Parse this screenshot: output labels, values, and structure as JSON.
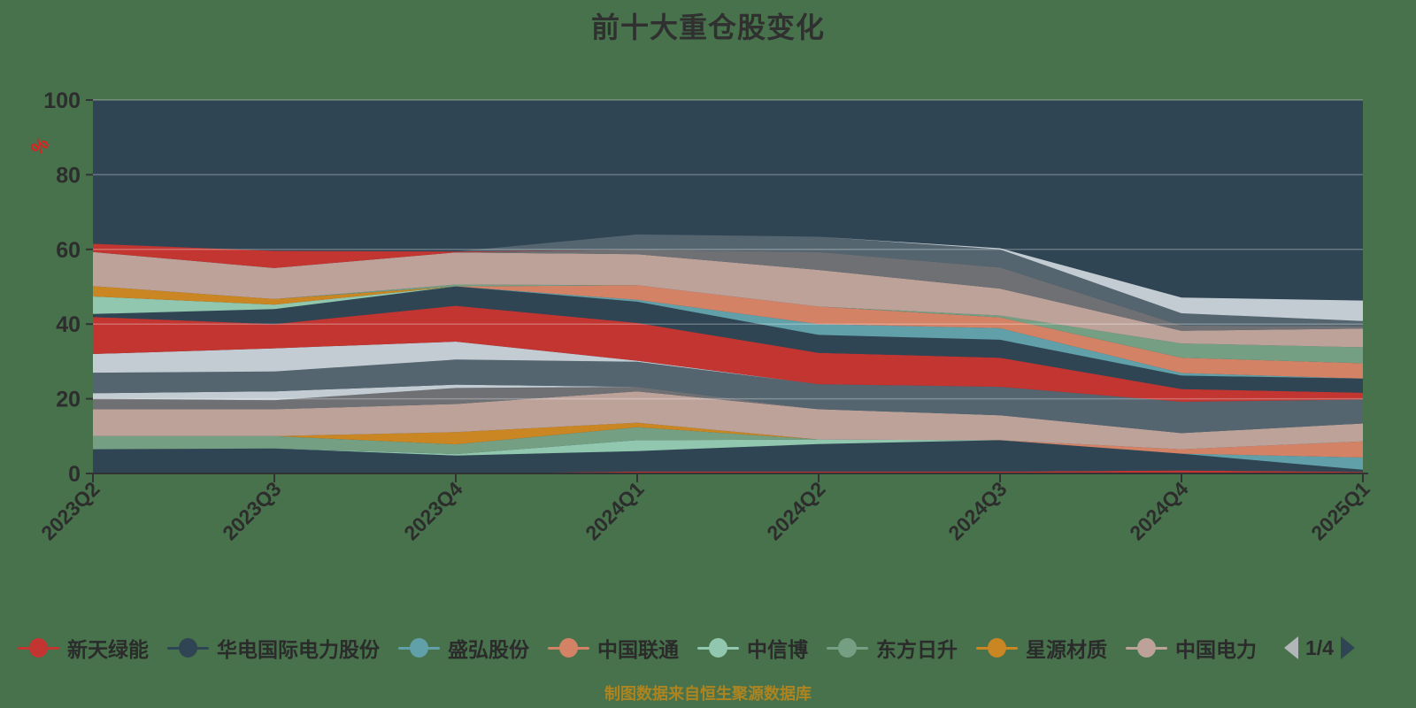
{
  "title": {
    "text": "前十大重仓股变化"
  },
  "caption": {
    "text": "制图数据来自恒生聚源数据库"
  },
  "colors": {
    "page_bg": "#47724c",
    "plot_bg": "#2f4554",
    "title": "#303030",
    "axis_label": "#2d2d2d",
    "axis_line": "#333333",
    "grid_line": "rgba(255,255,255,0.28)",
    "caption": "#ad841f",
    "y_axis_name": "#e02020",
    "legend_text": "#2b2b2b",
    "pager_prev": "#b2b6b8",
    "pager_next": "#2f4554",
    "pager_text": "#2b2b2b"
  },
  "legend": {
    "page": "1/4",
    "items": [
      {
        "label": "新天绿能",
        "color": "#c23531"
      },
      {
        "label": "华电国际电力股份",
        "color": "#2f4554"
      },
      {
        "label": "盛弘股份",
        "color": "#61a0a8"
      },
      {
        "label": "中国联通",
        "color": "#d48265"
      },
      {
        "label": "中信博",
        "color": "#91c7ae"
      },
      {
        "label": "东方日升",
        "color": "#749f83"
      },
      {
        "label": "星源材质",
        "color": "#ca8622"
      },
      {
        "label": "中国电力",
        "color": "#bda29a"
      }
    ]
  },
  "chart_data": {
    "type": "area",
    "stacked": true,
    "unit": "%",
    "title": "前十大重仓股变化",
    "categories": [
      "2023Q2",
      "2023Q3",
      "2023Q4",
      "2024Q1",
      "2024Q2",
      "2024Q3",
      "2024Q4",
      "2025Q1"
    ],
    "y_axis_name": "%",
    "y_ticks": [
      0,
      20,
      40,
      60,
      80,
      100
    ],
    "y_max": 100,
    "grid": true,
    "legend_position": "bottom",
    "series": [
      {
        "name": "red-band-1",
        "color": "#c23531",
        "values": [
          0,
          0,
          0,
          0.5,
          0.5,
          0.5,
          0.8,
          0.4
        ]
      },
      {
        "name": "navy-band-1",
        "color": "#2f4554",
        "values": [
          6.5,
          6.7,
          4.8,
          5.5,
          7.4,
          8.4,
          4.5,
          0.6
        ]
      },
      {
        "name": "teal-band-1",
        "color": "#61a0a8",
        "values": [
          0,
          0,
          0,
          0,
          0,
          0,
          0,
          3.3
        ]
      },
      {
        "name": "mint-band-1",
        "color": "#91c7ae",
        "values": [
          0,
          0,
          0.4,
          2.9,
          1.2,
          0,
          0,
          0
        ]
      },
      {
        "name": "green-band-1",
        "color": "#749f83",
        "values": [
          3.5,
          3.3,
          2.6,
          3.5,
          0,
          0,
          0,
          0
        ]
      },
      {
        "name": "gold-band-1",
        "color": "#ca8622",
        "values": [
          0,
          0,
          3.3,
          1.2,
          0,
          0,
          0,
          0
        ]
      },
      {
        "name": "salmon-band-1",
        "color": "#d48265",
        "values": [
          0,
          0,
          0,
          0,
          0,
          0,
          1.2,
          4.3
        ]
      },
      {
        "name": "tan-band-1",
        "color": "#bda29a",
        "values": [
          7.2,
          7.2,
          7.5,
          8.4,
          8.1,
          6.7,
          4.3,
          4.8
        ]
      },
      {
        "name": "gray-band-1",
        "color": "#6e7074",
        "values": [
          2.8,
          2.4,
          4.3,
          1.2,
          0,
          0,
          0,
          0
        ]
      },
      {
        "name": "silver-band-1",
        "color": "#c4ccd3",
        "values": [
          1.5,
          2.4,
          0.9,
          0,
          0,
          0,
          0,
          0
        ]
      },
      {
        "name": "slate-band-1",
        "color": "#546570",
        "values": [
          5.5,
          5.3,
          6.7,
          6.7,
          6.7,
          7.6,
          8.4,
          6.4
        ]
      },
      {
        "name": "silver-band-2",
        "color": "#c4ccd3",
        "values": [
          5.0,
          6.2,
          4.8,
          0.3,
          0,
          0,
          0,
          0
        ]
      },
      {
        "name": "red-band-2",
        "color": "#c23531",
        "values": [
          9.9,
          6.5,
          9.6,
          10.1,
          8.4,
          7.8,
          3.4,
          1.8
        ]
      },
      {
        "name": "navy-band-2",
        "color": "#2f4554",
        "values": [
          0.8,
          4.0,
          5.2,
          5.7,
          4.8,
          4.8,
          3.6,
          3.8
        ]
      },
      {
        "name": "teal-band-2",
        "color": "#61a0a8",
        "values": [
          0,
          0,
          0,
          0.5,
          2.9,
          3.1,
          0.7,
          0
        ]
      },
      {
        "name": "mint-band-2",
        "color": "#91c7ae",
        "values": [
          4.7,
          1.2,
          0,
          0,
          0,
          0,
          0,
          0
        ]
      },
      {
        "name": "gold-band-2",
        "color": "#ca8622",
        "values": [
          2.8,
          1.5,
          0,
          0,
          0,
          0,
          0,
          0
        ]
      },
      {
        "name": "salmon-band-2",
        "color": "#d48265",
        "values": [
          0,
          0,
          0,
          3.9,
          4.7,
          2.9,
          4.1,
          4.1
        ]
      },
      {
        "name": "green-band-2",
        "color": "#749f83",
        "values": [
          0,
          0,
          0.5,
          0,
          0,
          0.5,
          3.8,
          4.3
        ]
      },
      {
        "name": "tan-band-2",
        "color": "#bda29a",
        "values": [
          9.1,
          8.3,
          8.6,
          8.3,
          9.8,
          7.2,
          3.4,
          5.0
        ]
      },
      {
        "name": "gray-band-2",
        "color": "#6e7074",
        "values": [
          0,
          0,
          0,
          1.2,
          4.8,
          5.7,
          1.4,
          0.6
        ]
      },
      {
        "name": "red-band-3",
        "color": "#c23531",
        "values": [
          2.2,
          4.6,
          0.2,
          0,
          0,
          0,
          0,
          0
        ]
      },
      {
        "name": "slate-band-2",
        "color": "#546570",
        "values": [
          0,
          0,
          0,
          4.1,
          4.1,
          4.8,
          3.3,
          1.4
        ]
      },
      {
        "name": "silver-band-3",
        "color": "#c4ccd3",
        "values": [
          0,
          0,
          0,
          0,
          0,
          0.3,
          4.2,
          5.5
        ]
      }
    ]
  }
}
